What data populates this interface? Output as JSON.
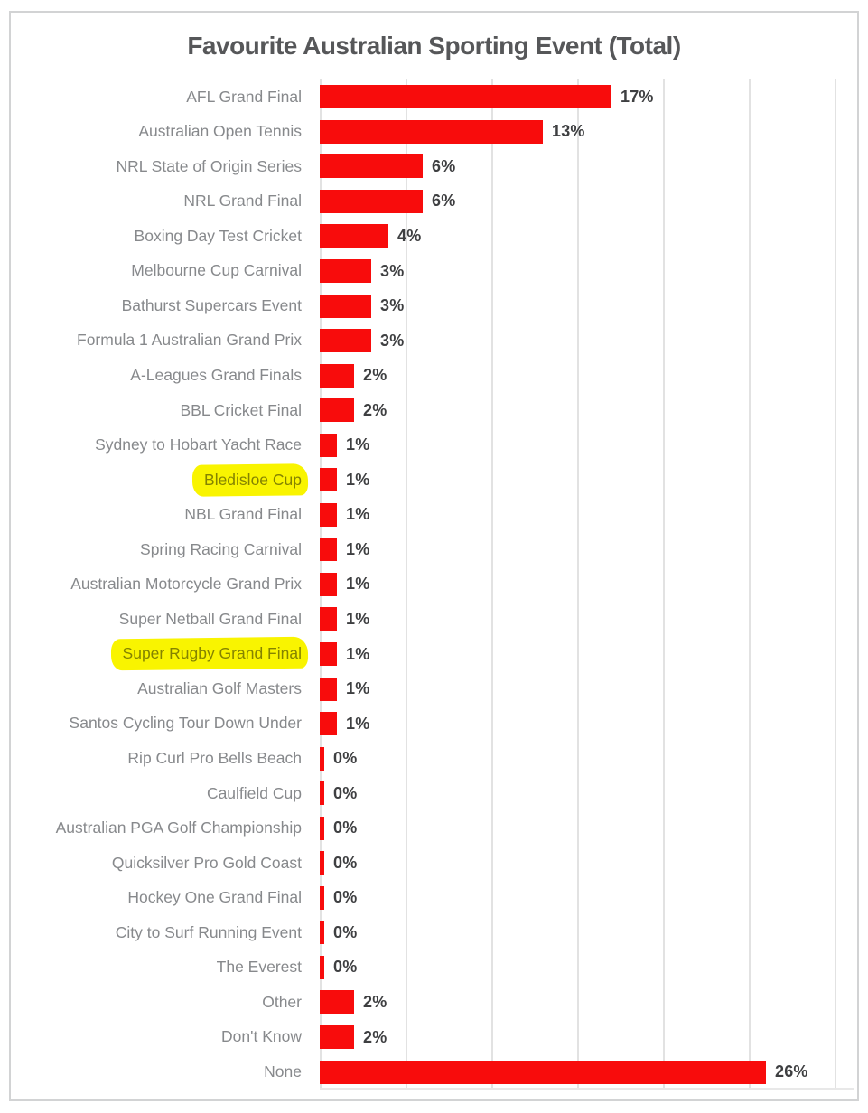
{
  "chart_data": {
    "type": "bar",
    "orientation": "horizontal",
    "title": "Favourite Australian Sporting Event (Total)",
    "unit": "%",
    "categories": [
      "AFL Grand Final",
      "Australian Open Tennis",
      "NRL State of Origin Series",
      "NRL Grand Final",
      "Boxing Day Test Cricket",
      "Melbourne Cup Carnival",
      "Bathurst Supercars Event",
      "Formula 1 Australian Grand Prix",
      "A-Leagues Grand Finals",
      "BBL Cricket Final",
      "Sydney to Hobart Yacht Race",
      "Bledisloe Cup",
      "NBL Grand Final",
      "Spring Racing Carnival",
      "Australian Motorcycle Grand Prix",
      "Super Netball Grand Final",
      "Super Rugby Grand Final",
      "Australian Golf Masters",
      "Santos Cycling Tour Down Under",
      "Rip Curl Pro Bells Beach",
      "Caulfield Cup",
      "Australian PGA Golf Championship",
      "Quicksilver Pro Gold Coast",
      "Hockey One Grand Final",
      "City to Surf Running Event",
      "The Everest",
      "Other",
      "Don't Know",
      "None"
    ],
    "values": [
      17,
      13,
      6,
      6,
      4,
      3,
      3,
      3,
      2,
      2,
      1,
      1,
      1,
      1,
      1,
      1,
      1,
      1,
      1,
      0,
      0,
      0,
      0,
      0,
      0,
      0,
      2,
      2,
      26
    ],
    "value_labels": [
      "17%",
      "13%",
      "6%",
      "6%",
      "4%",
      "3%",
      "3%",
      "3%",
      "2%",
      "2%",
      "1%",
      "1%",
      "1%",
      "1%",
      "1%",
      "1%",
      "1%",
      "1%",
      "1%",
      "0%",
      "0%",
      "0%",
      "0%",
      "0%",
      "0%",
      "0%",
      "2%",
      "2%",
      "26%"
    ],
    "highlighted_categories": [
      "Bledisloe Cup",
      "Super Rugby Grand Final"
    ],
    "highlighted_indices": [
      11,
      16
    ],
    "xlabel": "",
    "ylabel": "",
    "xlim": [
      0,
      30
    ],
    "x_ticks": [
      0,
      5,
      10,
      15,
      20,
      25,
      30
    ],
    "x_tick_labels_visible": false,
    "grid": "vertical",
    "legend": "none",
    "bar_color": "#f80c0c",
    "highlight_color": "#f9f400",
    "label_color": "#87898c",
    "value_color": "#3e3f41",
    "title_color": "#565759"
  }
}
